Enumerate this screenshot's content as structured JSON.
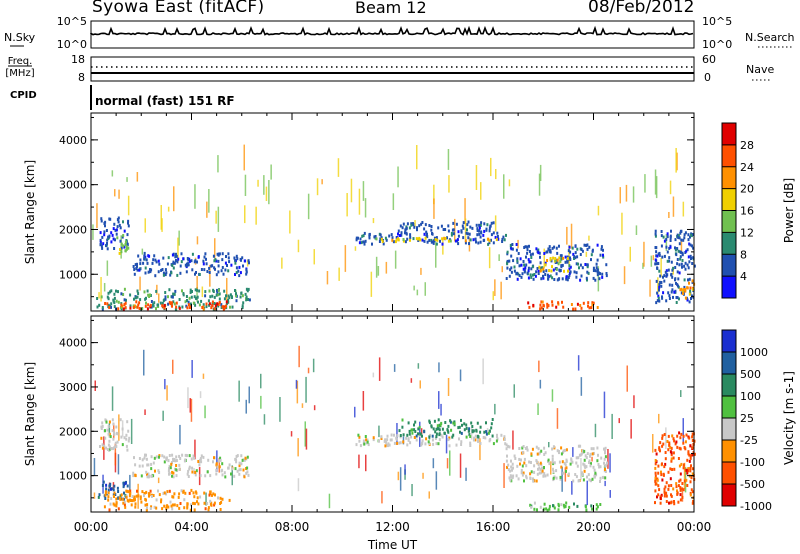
{
  "header": {
    "station": "Syowa East (fitACF)",
    "beam": "Beam 12",
    "date": "08/Feb/2012"
  },
  "strip_panels": {
    "nsky": {
      "label": "N.Sky",
      "tick_top": "10^5",
      "tick_bottom": "10^0"
    },
    "nsearch": {
      "label": "N.Search",
      "tick_top": "10^5",
      "tick_bottom": "10^0"
    },
    "freq": {
      "label_line1": "Freq.",
      "label_line2": "[MHz]",
      "tick_top": "18",
      "tick_bottom": "8"
    },
    "nave": {
      "label": "Nave",
      "tick_top": "60",
      "tick_bottom": "0"
    },
    "cpid": {
      "label": "CPID",
      "value": "normal (fast) 151 RF"
    }
  },
  "chart_data": [
    {
      "type": "heatmap",
      "name": "power-panel",
      "ylabel": "Slant Range [km]",
      "ylim": [
        180,
        4600
      ],
      "yticks": [
        1000,
        2000,
        3000,
        4000
      ],
      "xlim": [
        0,
        24
      ],
      "colorbar": {
        "label": "Power [dB]",
        "range": [
          0,
          32
        ],
        "ticks": [
          "4",
          "8",
          "12",
          "16",
          "20",
          "24",
          "28"
        ],
        "colors": [
          "#1010ff",
          "#2050b0",
          "#2a8a70",
          "#70c050",
          "#f0d000",
          "#ff9000",
          "#ff5000",
          "#e00000"
        ]
      },
      "regions": [
        {
          "x": [
            0.3,
            1.5
          ],
          "y": [
            1600,
            2300
          ],
          "level": 1
        },
        {
          "x": [
            1.0,
            1.5
          ],
          "y": [
            1500,
            1900
          ],
          "level": 3
        },
        {
          "x": [
            1.6,
            6.3
          ],
          "y": [
            1000,
            1500
          ],
          "level": 1
        },
        {
          "x": [
            0.2,
            6.3
          ],
          "y": [
            250,
            700
          ],
          "level": 2
        },
        {
          "x": [
            0.5,
            5.5
          ],
          "y": [
            250,
            420
          ],
          "level": 6
        },
        {
          "x": [
            10.5,
            16.5
          ],
          "y": [
            1700,
            1950
          ],
          "level": 1
        },
        {
          "x": [
            11.3,
            16.3
          ],
          "y": [
            1760,
            1840
          ],
          "level": 4
        },
        {
          "x": [
            12.2,
            16.0
          ],
          "y": [
            1900,
            2200
          ],
          "level": 1
        },
        {
          "x": [
            16.5,
            20.5
          ],
          "y": [
            900,
            1700
          ],
          "level": 1
        },
        {
          "x": [
            17.8,
            19.0
          ],
          "y": [
            1100,
            1400
          ],
          "level": 4
        },
        {
          "x": [
            17.3,
            20.3
          ],
          "y": [
            250,
            420
          ],
          "level": 6
        },
        {
          "x": [
            22.4,
            24.0
          ],
          "y": [
            400,
            2000
          ],
          "level": 1
        },
        {
          "x": [
            23.4,
            24.0
          ],
          "y": [
            500,
            900
          ],
          "level": 5
        }
      ]
    },
    {
      "type": "heatmap",
      "name": "velocity-panel",
      "ylabel": "Slant Range [km]",
      "ylim": [
        180,
        4600
      ],
      "yticks": [
        1000,
        2000,
        3000,
        4000
      ],
      "xlim": [
        0,
        24
      ],
      "xticks": [
        "00:00",
        "04:00",
        "08:00",
        "12:00",
        "16:00",
        "20:00",
        "00:00"
      ],
      "xlabel": "Time UT",
      "colorbar": {
        "label": "Velocity [m s-1]",
        "ticks": [
          "1000",
          "500",
          "100",
          "25",
          "-25",
          "-100",
          "-500",
          "-1000"
        ],
        "colors": [
          "#1a2fd0",
          "#2060a0",
          "#2a8a60",
          "#50c040",
          "#c8c8c8",
          "#ff9000",
          "#ff5000",
          "#e00000"
        ]
      },
      "regions": [
        {
          "x": [
            0.3,
            1.5
          ],
          "y": [
            1600,
            2300
          ],
          "level": 4
        },
        {
          "x": [
            1.6,
            6.3
          ],
          "y": [
            1000,
            1500
          ],
          "level": 4
        },
        {
          "x": [
            0.2,
            1.5
          ],
          "y": [
            500,
            900
          ],
          "level": 1
        },
        {
          "x": [
            0.5,
            5.5
          ],
          "y": [
            250,
            700
          ],
          "level": 5
        },
        {
          "x": [
            10.5,
            16.5
          ],
          "y": [
            1700,
            1950
          ],
          "level": 4
        },
        {
          "x": [
            12.2,
            16.0
          ],
          "y": [
            1900,
            2300
          ],
          "level": 2
        },
        {
          "x": [
            16.5,
            20.5
          ],
          "y": [
            900,
            1700
          ],
          "level": 4
        },
        {
          "x": [
            17.3,
            20.3
          ],
          "y": [
            250,
            420
          ],
          "level": 3
        },
        {
          "x": [
            22.4,
            24.0
          ],
          "y": [
            400,
            2000
          ],
          "level": 6
        }
      ]
    }
  ],
  "colors": {
    "frame": "#000000",
    "background": "#ffffff"
  }
}
